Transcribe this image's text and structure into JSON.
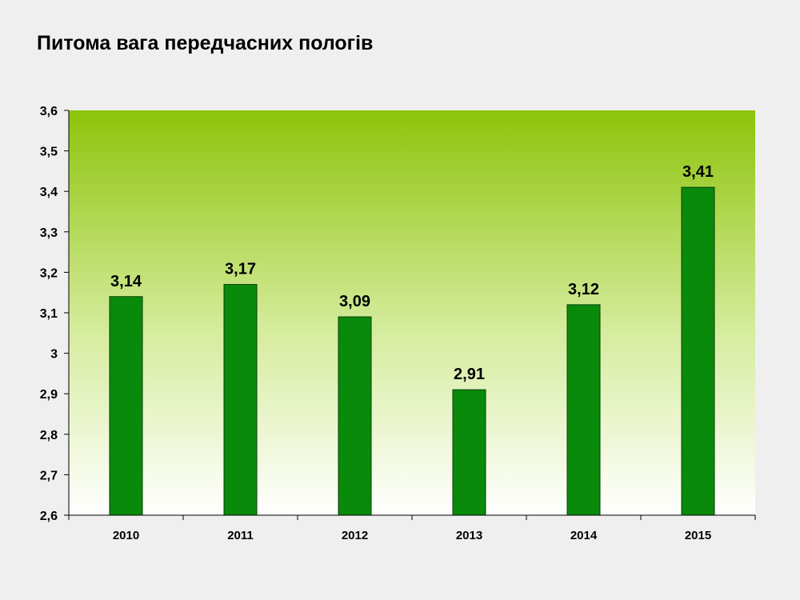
{
  "slide": {
    "background_color": "#efefef"
  },
  "chart_data": {
    "type": "bar",
    "title": "Питома вага передчасних пологів",
    "xlabel": "",
    "ylabel": "",
    "categories": [
      "2010",
      "2011",
      "2012",
      "2013",
      "2014",
      "2015"
    ],
    "values": [
      3.14,
      3.17,
      3.09,
      2.91,
      3.12,
      3.41
    ],
    "value_labels": [
      "3,14",
      "3,17",
      "3,09",
      "2,91",
      "3,12",
      "3,41"
    ],
    "ylim": [
      2.6,
      3.6
    ],
    "yticks": [
      2.6,
      2.7,
      2.8,
      2.9,
      3.0,
      3.1,
      3.2,
      3.3,
      3.4,
      3.5,
      3.6
    ],
    "ytick_labels": [
      "2,6",
      "2,7",
      "2,8",
      "2,9",
      "3",
      "3,1",
      "3,2",
      "3,3",
      "3,4",
      "3,5",
      "3,6"
    ],
    "grid": false,
    "legend": "none",
    "colors": {
      "bar_fill": "#0a8a0a",
      "bar_stroke": "#063f06",
      "plot_gradient_top": "#8cc40a",
      "plot_gradient_bottom": "#ffffff"
    }
  }
}
